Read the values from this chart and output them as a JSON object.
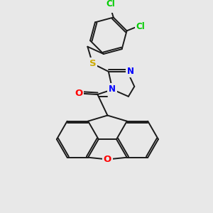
{
  "background_color": "#e8e8e8",
  "atom_colors": {
    "C": "#000000",
    "N": "#0000ff",
    "O": "#ff0000",
    "S": "#ccaa00",
    "Cl": "#00cc00"
  },
  "bond_color": "#1a1a1a",
  "bond_width": 1.4,
  "font_size_atoms": 8.5
}
